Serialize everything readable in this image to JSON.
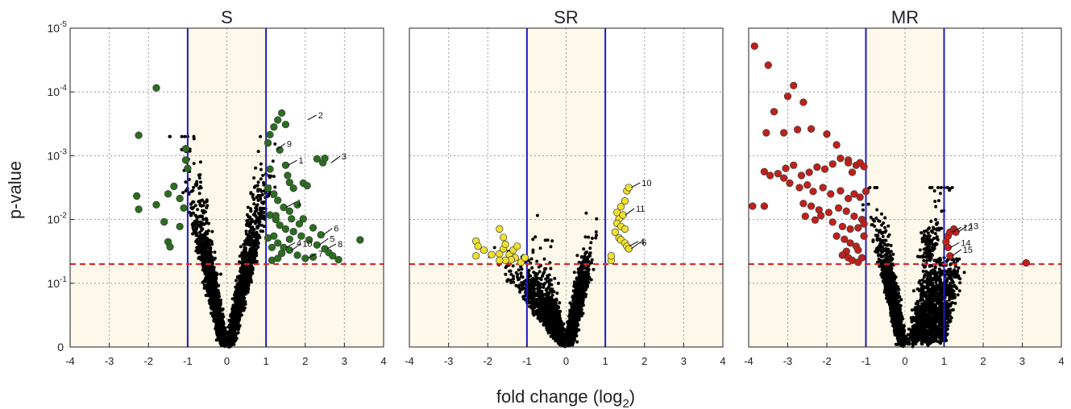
{
  "figure": {
    "ylabel": "p-value",
    "xlabel_main": "fold change (log",
    "xlabel_sub": "2",
    "xlabel_close": ")",
    "y_tick_labels": [
      {
        "base": "0",
        "exp": ""
      },
      {
        "base": "10",
        "exp": "-1"
      },
      {
        "base": "10",
        "exp": "-2"
      },
      {
        "base": "10",
        "exp": "-3"
      },
      {
        "base": "10",
        "exp": "-4"
      },
      {
        "base": "10",
        "exp": "-5"
      }
    ],
    "x_tick_labels": [
      "-4",
      "-3",
      "-2",
      "-1",
      "0",
      "1",
      "2",
      "3",
      "4"
    ],
    "colors": {
      "background_shade": "#fdf8ea",
      "threshold_vertical": "#1a1acc",
      "threshold_horizontal": "#e02020",
      "grid": "#9a9a9a",
      "nonsignificant_points": "#000000"
    }
  },
  "chart_data": [
    {
      "type": "scatter",
      "title": "S",
      "xlim": [
        -4,
        4
      ],
      "ylim_log10_p": [
        0,
        5
      ],
      "fold_change_threshold_log2": [
        -1,
        1
      ],
      "p_threshold": 0.05,
      "significant_color": "#2a6e1e",
      "significant_points": [
        {
          "x": -1.8,
          "p": 8.65e-05
        },
        {
          "x": -2.25,
          "p": 0.000478
        },
        {
          "x": -2.3,
          "p": 0.00428
        },
        {
          "x": -2.25,
          "p": 0.00692
        },
        {
          "x": -1.8,
          "p": 0.00588
        },
        {
          "x": -1.5,
          "p": 0.00397
        },
        {
          "x": -1.6,
          "p": 0.0109
        },
        {
          "x": -1.5,
          "p": 0.0224
        },
        {
          "x": -1.45,
          "p": 0.0269
        },
        {
          "x": -1.35,
          "p": 0.00302
        },
        {
          "x": -1.2,
          "p": 0.00468
        },
        {
          "x": -1.05,
          "p": 0.000776
        },
        {
          "x": -1.05,
          "p": 0.00117
        },
        {
          "x": -1.1,
          "p": 0.00661
        },
        {
          "x": -1.2,
          "p": 0.0129
        },
        {
          "x": -1.0,
          "p": 0.00158
        },
        {
          "x": 1.05,
          "p": 0.000631
        },
        {
          "x": 1.1,
          "p": 0.000468
        },
        {
          "x": 1.2,
          "p": 0.000355
        },
        {
          "x": 1.3,
          "p": 0.000275
        },
        {
          "x": 1.4,
          "p": 0.000214
        },
        {
          "x": 1.5,
          "p": 0.000324
        },
        {
          "x": 1.35,
          "p": 0.000813
        },
        {
          "x": 1.5,
          "p": 0.00141
        },
        {
          "x": 1.55,
          "p": 0.00204
        },
        {
          "x": 1.6,
          "p": 0.00263
        },
        {
          "x": 1.7,
          "p": 0.00324
        },
        {
          "x": 1.1,
          "p": 0.00162
        },
        {
          "x": 1.05,
          "p": 0.00324
        },
        {
          "x": 1.2,
          "p": 0.00398
        },
        {
          "x": 1.3,
          "p": 0.00501
        },
        {
          "x": 1.45,
          "p": 0.00646
        },
        {
          "x": 1.6,
          "p": 0.00741
        },
        {
          "x": 1.1,
          "p": 0.00851
        },
        {
          "x": 1.25,
          "p": 0.01
        },
        {
          "x": 1.35,
          "p": 0.0123
        },
        {
          "x": 1.5,
          "p": 0.0141
        },
        {
          "x": 1.7,
          "p": 0.0155
        },
        {
          "x": 1.9,
          "p": 0.0182
        },
        {
          "x": 2.1,
          "p": 0.0209
        },
        {
          "x": 1.2,
          "p": 0.0182
        },
        {
          "x": 1.3,
          "p": 0.0234
        },
        {
          "x": 1.45,
          "p": 0.0275
        },
        {
          "x": 1.6,
          "p": 0.0302
        },
        {
          "x": 1.8,
          "p": 0.0363
        },
        {
          "x": 2.0,
          "p": 0.0407
        },
        {
          "x": 2.2,
          "p": 0.0389
        },
        {
          "x": 2.5,
          "p": 0.0288
        },
        {
          "x": 2.6,
          "p": 0.0331
        },
        {
          "x": 2.3,
          "p": 0.0251
        },
        {
          "x": 1.4,
          "p": 0.0339
        },
        {
          "x": 1.15,
          "p": 0.0437
        },
        {
          "x": 1.3,
          "p": 0.0407
        },
        {
          "x": 2.7,
          "p": 0.0372
        },
        {
          "x": 2.85,
          "p": 0.0427
        },
        {
          "x": 3.4,
          "p": 0.0209
        },
        {
          "x": 2.3,
          "p": 0.00112
        },
        {
          "x": 2.45,
          "p": 0.00129
        },
        {
          "x": 2.5,
          "p": 0.0011
        },
        {
          "x": 1.95,
          "p": 0.00269
        },
        {
          "x": 2.05,
          "p": 0.00295
        },
        {
          "x": 1.8,
          "p": 0.00589
        },
        {
          "x": 1.95,
          "p": 0.00977
        },
        {
          "x": 2.2,
          "p": 0.0135
        },
        {
          "x": 2.4,
          "p": 0.0174
        },
        {
          "x": 1.25,
          "p": 0.00871
        },
        {
          "x": 1.65,
          "p": 0.00977
        },
        {
          "x": 1.85,
          "p": 0.0117
        },
        {
          "x": 1.05,
          "p": 0.0195
        },
        {
          "x": 1.15,
          "p": 0.0275
        },
        {
          "x": 1.6,
          "p": 0.0204
        }
      ],
      "labels": [
        {
          "text": "2",
          "x": 2.0,
          "p": 0.000275
        },
        {
          "text": "9",
          "x": 1.2,
          "p": 0.000813
        },
        {
          "text": "1",
          "x": 1.5,
          "p": 0.00141
        },
        {
          "text": "3",
          "x": 2.6,
          "p": 0.00129
        },
        {
          "text": "1",
          "x": 1.45,
          "p": 0.00646
        },
        {
          "text": "5",
          "x": 2.3,
          "p": 0.0251
        },
        {
          "text": "4",
          "x": 1.45,
          "p": 0.0275
        },
        {
          "text": "10",
          "x": 1.6,
          "p": 0.0302
        },
        {
          "text": "8",
          "x": 2.5,
          "p": 0.0288
        },
        {
          "text": "6",
          "x": 2.4,
          "p": 0.0174
        },
        {
          "text": "7",
          "x": 2.0,
          "p": 0.0407
        }
      ]
    },
    {
      "type": "scatter",
      "title": "SR",
      "xlim": [
        -4,
        4
      ],
      "ylim_log10_p": [
        0,
        5
      ],
      "fold_change_threshold_log2": [
        -1,
        1
      ],
      "p_threshold": 0.05,
      "significant_color": "#f0e030",
      "significant_points": [
        {
          "x": -1.7,
          "p": 0.0141
        },
        {
          "x": -1.6,
          "p": 0.0191
        },
        {
          "x": -2.3,
          "p": 0.0219
        },
        {
          "x": -2.25,
          "p": 0.0263
        },
        {
          "x": -2.1,
          "p": 0.0302
        },
        {
          "x": -1.9,
          "p": 0.0355
        },
        {
          "x": -1.7,
          "p": 0.0347
        },
        {
          "x": -1.6,
          "p": 0.0288
        },
        {
          "x": -1.55,
          "p": 0.0245
        },
        {
          "x": -1.45,
          "p": 0.0355
        },
        {
          "x": -1.35,
          "p": 0.0302
        },
        {
          "x": -1.25,
          "p": 0.0263
        },
        {
          "x": -1.3,
          "p": 0.0398
        },
        {
          "x": -1.4,
          "p": 0.0427
        },
        {
          "x": -1.55,
          "p": 0.0437
        },
        {
          "x": -2.3,
          "p": 0.0372
        },
        {
          "x": -1.7,
          "p": 0.0437
        },
        {
          "x": -1.15,
          "p": 0.0468
        },
        {
          "x": -1.05,
          "p": 0.0398
        },
        {
          "x": 1.15,
          "p": 0.0437
        },
        {
          "x": 1.15,
          "p": 0.0372
        },
        {
          "x": 1.25,
          "p": 0.0158
        },
        {
          "x": 1.35,
          "p": 0.00977
        },
        {
          "x": 1.4,
          "p": 0.00631
        },
        {
          "x": 1.5,
          "p": 0.00513
        },
        {
          "x": 1.55,
          "p": 0.00355
        },
        {
          "x": 1.6,
          "p": 0.00316
        },
        {
          "x": 1.3,
          "p": 0.00776
        },
        {
          "x": 1.45,
          "p": 0.00851
        },
        {
          "x": 1.3,
          "p": 0.0115
        },
        {
          "x": 1.4,
          "p": 0.0129
        },
        {
          "x": 1.5,
          "p": 0.0141
        },
        {
          "x": 1.35,
          "p": 0.0195
        },
        {
          "x": 1.4,
          "p": 0.0209
        },
        {
          "x": 1.5,
          "p": 0.0234
        },
        {
          "x": 1.55,
          "p": 0.0263
        },
        {
          "x": 1.6,
          "p": 0.0288
        }
      ],
      "labels": [
        {
          "text": "10",
          "x": 1.6,
          "p": 0.00316
        },
        {
          "text": "11",
          "x": 1.45,
          "p": 0.00851
        },
        {
          "text": "4",
          "x": 1.55,
          "p": 0.0263
        },
        {
          "text": "6",
          "x": 1.6,
          "p": 0.0288
        }
      ]
    },
    {
      "type": "scatter",
      "title": "MR",
      "xlim": [
        -4,
        4
      ],
      "ylim_log10_p": [
        0,
        5
      ],
      "fold_change_threshold_log2": [
        -1,
        1
      ],
      "p_threshold": 0.05,
      "significant_color": "#c0201a",
      "significant_points": [
        {
          "x": -3.85,
          "p": 1.91e-05
        },
        {
          "x": -3.5,
          "p": 3.8e-05
        },
        {
          "x": -2.85,
          "p": 7.94e-05
        },
        {
          "x": -3.0,
          "p": 0.000117
        },
        {
          "x": -2.6,
          "p": 0.000145
        },
        {
          "x": -3.35,
          "p": 0.000204
        },
        {
          "x": -3.55,
          "p": 0.000437
        },
        {
          "x": -3.1,
          "p": 0.000437
        },
        {
          "x": -2.75,
          "p": 0.000389
        },
        {
          "x": -2.4,
          "p": 0.00038
        },
        {
          "x": -2.0,
          "p": 0.000457
        },
        {
          "x": -1.75,
          "p": 0.000676
        },
        {
          "x": -1.45,
          "p": 0.00117
        },
        {
          "x": -3.9,
          "p": 0.00617
        },
        {
          "x": -3.6,
          "p": 0.00617
        },
        {
          "x": -3.6,
          "p": 0.00178
        },
        {
          "x": -3.45,
          "p": 0.00204
        },
        {
          "x": -3.25,
          "p": 0.00191
        },
        {
          "x": -3.05,
          "p": 0.00158
        },
        {
          "x": -2.85,
          "p": 0.00141
        },
        {
          "x": -2.65,
          "p": 0.00204
        },
        {
          "x": -2.45,
          "p": 0.00182
        },
        {
          "x": -2.25,
          "p": 0.00151
        },
        {
          "x": -2.05,
          "p": 0.00162
        },
        {
          "x": -1.85,
          "p": 0.00135
        },
        {
          "x": -1.65,
          "p": 0.0011
        },
        {
          "x": -1.45,
          "p": 0.00129
        },
        {
          "x": -1.35,
          "p": 0.00182
        },
        {
          "x": -1.25,
          "p": 0.00141
        },
        {
          "x": -1.15,
          "p": 0.00129
        },
        {
          "x": -1.05,
          "p": 0.00148
        },
        {
          "x": -3.1,
          "p": 0.00224
        },
        {
          "x": -2.95,
          "p": 0.00269
        },
        {
          "x": -2.7,
          "p": 0.00316
        },
        {
          "x": -2.5,
          "p": 0.00288
        },
        {
          "x": -2.35,
          "p": 0.00363
        },
        {
          "x": -2.1,
          "p": 0.00316
        },
        {
          "x": -1.9,
          "p": 0.00398
        },
        {
          "x": -1.65,
          "p": 0.00355
        },
        {
          "x": -1.45,
          "p": 0.00468
        },
        {
          "x": -1.3,
          "p": 0.00398
        },
        {
          "x": -1.15,
          "p": 0.00447
        },
        {
          "x": -2.6,
          "p": 0.00562
        },
        {
          "x": -2.4,
          "p": 0.00617
        },
        {
          "x": -2.2,
          "p": 0.00708
        },
        {
          "x": -1.95,
          "p": 0.00776
        },
        {
          "x": -1.7,
          "p": 0.00661
        },
        {
          "x": -1.5,
          "p": 0.00741
        },
        {
          "x": -1.3,
          "p": 0.00891
        },
        {
          "x": -1.1,
          "p": 0.01
        },
        {
          "x": -2.55,
          "p": 0.00891
        },
        {
          "x": -2.3,
          "p": 0.0102
        },
        {
          "x": -2.15,
          "p": 0.00871
        },
        {
          "x": -1.85,
          "p": 0.011
        },
        {
          "x": -1.6,
          "p": 0.0129
        },
        {
          "x": -1.4,
          "p": 0.0141
        },
        {
          "x": -1.2,
          "p": 0.0135
        },
        {
          "x": -1.05,
          "p": 0.0117
        },
        {
          "x": -1.75,
          "p": 0.0182
        },
        {
          "x": -1.55,
          "p": 0.0204
        },
        {
          "x": -1.4,
          "p": 0.0234
        },
        {
          "x": -1.25,
          "p": 0.0263
        },
        {
          "x": -1.2,
          "p": 0.0302
        },
        {
          "x": -1.5,
          "p": 0.0316
        },
        {
          "x": -1.6,
          "p": 0.0363
        },
        {
          "x": -1.45,
          "p": 0.0398
        },
        {
          "x": -1.35,
          "p": 0.0437
        },
        {
          "x": -1.2,
          "p": 0.0468
        },
        {
          "x": -1.1,
          "p": 0.0398
        },
        {
          "x": -1.05,
          "p": 0.0182
        },
        {
          "x": -1.0,
          "p": 0.00363
        },
        {
          "x": 1.05,
          "p": 0.0224
        },
        {
          "x": 1.1,
          "p": 0.0182
        },
        {
          "x": 1.15,
          "p": 0.0158
        },
        {
          "x": 1.25,
          "p": 0.0141
        },
        {
          "x": 1.3,
          "p": 0.0158
        },
        {
          "x": 1.1,
          "p": 0.0275
        },
        {
          "x": 1.15,
          "p": 0.0372
        },
        {
          "x": 3.1,
          "p": 0.0479
        }
      ],
      "labels": [
        {
          "text": "12",
          "x": 1.15,
          "p": 0.0158
        },
        {
          "text": "13",
          "x": 1.3,
          "p": 0.0158
        },
        {
          "text": "14",
          "x": 1.1,
          "p": 0.0275
        },
        {
          "text": "15",
          "x": 1.15,
          "p": 0.0372
        }
      ]
    }
  ]
}
